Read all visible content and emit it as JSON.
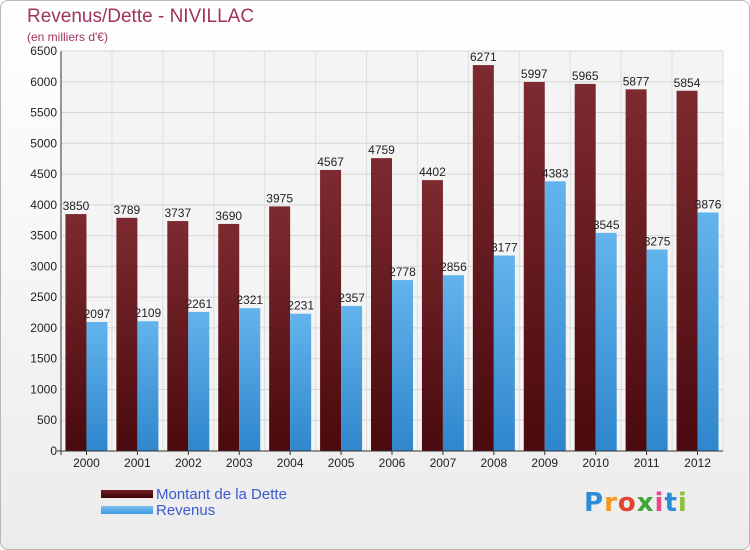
{
  "header": {
    "title": "Revenus/Dette - NIVILLAC",
    "subtitle": "(en milliers d'€)"
  },
  "legend": {
    "items": [
      {
        "label": "Montant de la Dette"
      },
      {
        "label": "Revenus"
      }
    ]
  },
  "logo": {
    "text": "Proxiti",
    "colors": [
      "#2e8bd6",
      "#f39a1c",
      "#e0452c",
      "#3fa535",
      "#e64a8c",
      "#2e8bd6",
      "#8fc03a"
    ]
  },
  "colors": {
    "dette": "#6b1a1f",
    "revenus": "#4ea8e8",
    "title": "#a0325f",
    "legend_text": "#3a5ad0"
  },
  "chart_data": {
    "type": "bar",
    "categories": [
      "2000",
      "2001",
      "2002",
      "2003",
      "2004",
      "2005",
      "2006",
      "2007",
      "2008",
      "2009",
      "2010",
      "2011",
      "2012"
    ],
    "series": [
      {
        "name": "Montant de la Dette",
        "values": [
          3850,
          3789,
          3737,
          3690,
          3975,
          4567,
          4759,
          4402,
          6271,
          5997,
          5965,
          5877,
          5854
        ]
      },
      {
        "name": "Revenus",
        "values": [
          2097,
          2109,
          2261,
          2321,
          2231,
          2357,
          2778,
          2856,
          3177,
          4383,
          3545,
          3275,
          3876
        ]
      }
    ],
    "ylim": [
      0,
      6500
    ],
    "yticks": [
      0,
      500,
      1000,
      1500,
      2000,
      2500,
      3000,
      3500,
      4000,
      4500,
      5000,
      5500,
      6000,
      6500
    ],
    "grid": true,
    "legend_position": "bottom-left"
  }
}
